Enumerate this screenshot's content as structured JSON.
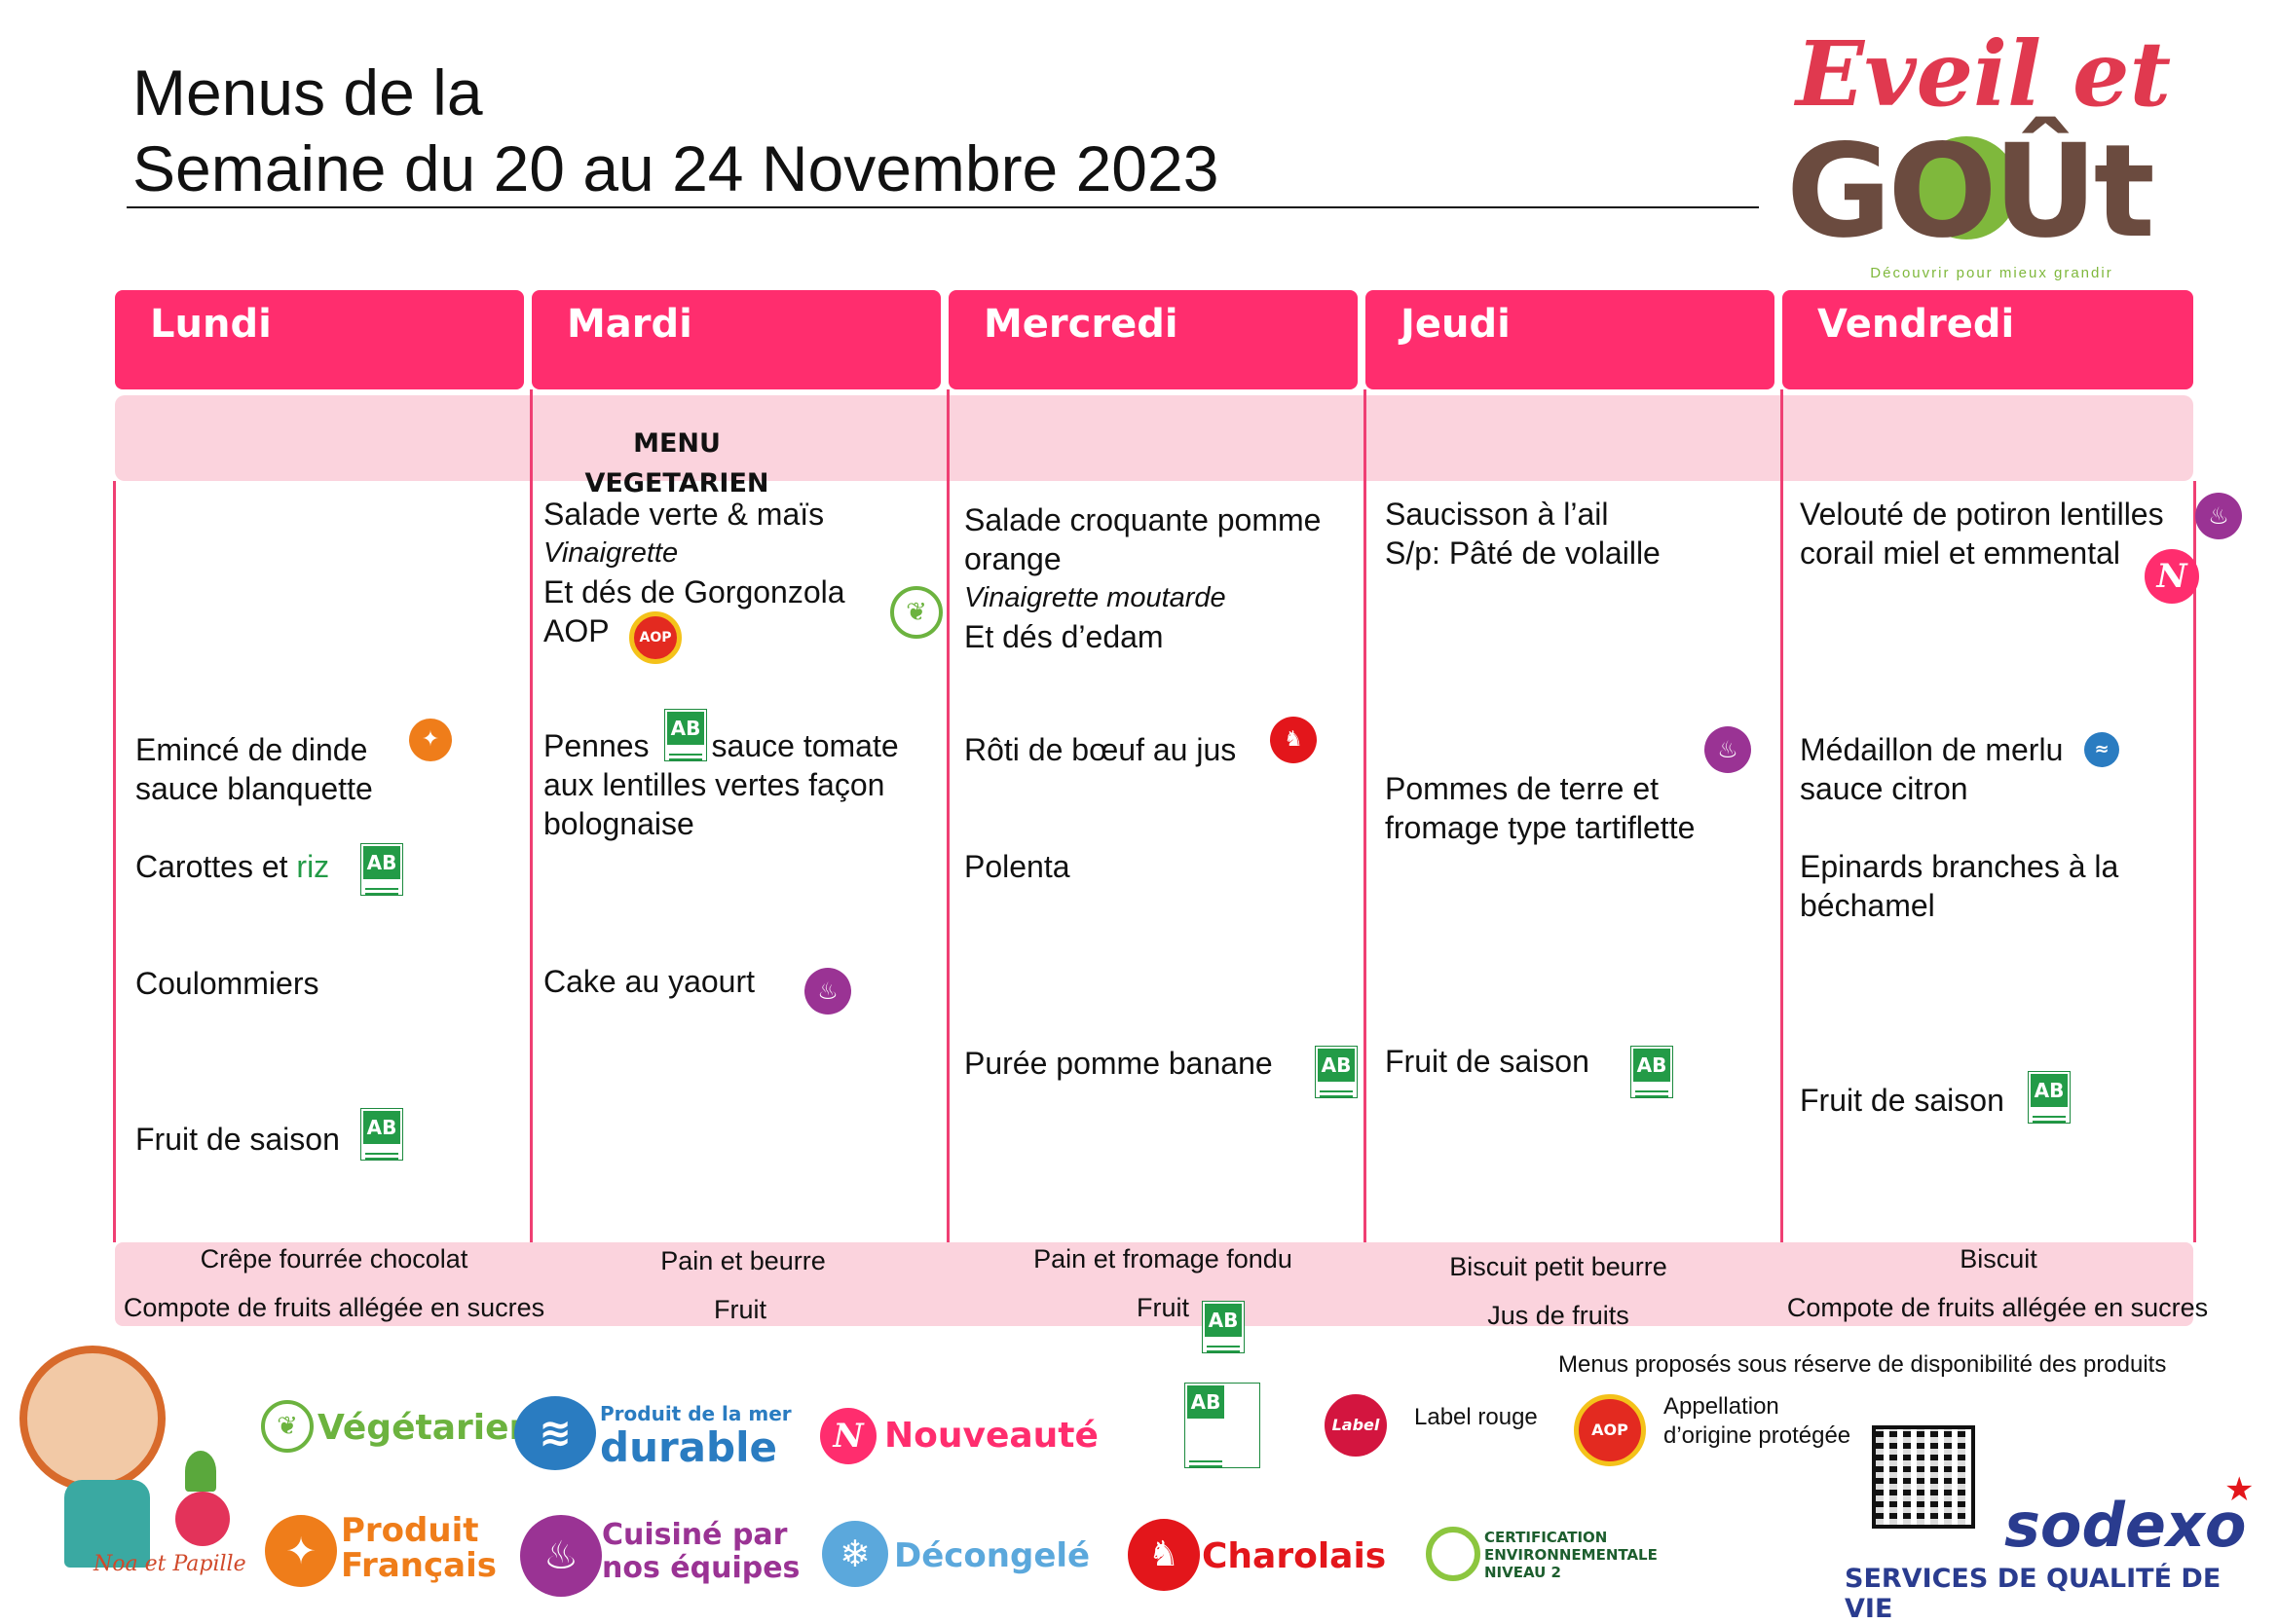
{
  "header": {
    "title_line1": "Menus de la",
    "title_line2": "Semaine du 20 au 24 Novembre 2023"
  },
  "logo": {
    "eveil": "Eveil et",
    "gout": "GOÛt",
    "tagline": "Découvrir pour mieux grandir"
  },
  "days": [
    "Lundi",
    "Mardi",
    "Mercredi",
    "Jeudi",
    "Vendredi"
  ],
  "special_label": "MENU VEGETARIEN",
  "menu": {
    "lundi": {
      "plat_l1": "Emincé de dinde",
      "plat_l2": "sauce blanquette",
      "accomp_a": "Carottes et ",
      "accomp_b": "riz",
      "fromage": "Coulommiers",
      "dessert": "Fruit de saison"
    },
    "mardi": {
      "entree_l1": "Salade verte & maïs",
      "entree_sauce": "Vinaigrette",
      "entree_l3": "Et dés de Gorgonzola",
      "entree_l4": "AOP",
      "plat_l1a": "Pennes",
      "plat_l1b": "sauce tomate",
      "plat_l2": "aux lentilles vertes façon",
      "plat_l3": "bolognaise",
      "dessert": "Cake au yaourt"
    },
    "mercredi": {
      "entree_l1": "Salade croquante pomme",
      "entree_l2": "orange",
      "entree_sauce": "Vinaigrette moutarde",
      "entree_l4": "Et dés d’edam",
      "plat": "Rôti de bœuf au jus",
      "accomp": "Polenta",
      "dessert": "Purée pomme banane"
    },
    "jeudi": {
      "entree_l1": "Saucisson à l’ail",
      "entree_l2": "S/p: Pâté de volaille",
      "plat_l1": "Pommes de terre et",
      "plat_l2": "fromage type tartiflette",
      "dessert": "Fruit de saison"
    },
    "vendredi": {
      "entree_l1": "Velouté de potiron lentilles",
      "entree_l2": "corail miel et emmental",
      "plat_l1": "Médaillon de merlu",
      "plat_l2": "sauce citron",
      "accomp_l1": "Epinards branches à la",
      "accomp_l2": "béchamel",
      "dessert": "Fruit de saison"
    }
  },
  "gouter": {
    "lundi": [
      "Crêpe fourrée chocolat",
      "Compote de fruits allégée en sucres"
    ],
    "mardi": [
      "Pain et beurre",
      "Fruit"
    ],
    "mercredi": [
      "Pain et fromage fondu",
      "Fruit"
    ],
    "jeudi": [
      "Biscuit petit beurre",
      "Jus de fruits"
    ],
    "vendredi": [
      "Biscuit",
      "Compote de fruits allégée en sucres"
    ]
  },
  "legend": {
    "vegetarien": "Végétarien",
    "mer_l1": "Produit de la mer",
    "mer_l2": "durable",
    "nouveaute": "Nouveauté",
    "label_rouge": "Label rouge",
    "aop_l1": "Appellation",
    "aop_l2": "d’origine protégée",
    "produit_l1": "Produit",
    "produit_l2": "Français",
    "cuisine_l1": "Cuisiné par",
    "cuisine_l2": "nos équipes",
    "decongele": "Décongelé",
    "charolais": "Charolais",
    "cert_l1": "CERTIFICATION",
    "cert_l2": "ENVIRONNEMENTALE",
    "cert_l3": "NIVEAU 2",
    "ab_caption": "AGRICULTURE BIOLOGIQUE"
  },
  "note": "Menus proposés sous réserve de disponibilité des produits",
  "mascot": "Noa et Papille",
  "brand": {
    "name": "sodexo",
    "subtitle": "SERVICES DE QUALITÉ DE VIE"
  },
  "colors": {
    "header_pink": "#ff2d6e",
    "band_pink": "#fbd3dd",
    "bio_green": "#239b47",
    "chef_purple": "#9a3394",
    "france_orange": "#ef7d1a",
    "charolais_red": "#e3161b",
    "sodexo_blue": "#2a3c8f"
  },
  "icons": [
    "ab-bio-icon",
    "produit-francais-icon",
    "cuisine-icon",
    "vegetarien-icon",
    "charolais-icon",
    "peche-durable-icon",
    "nouveaute-icon",
    "aop-icon",
    "label-rouge-icon",
    "decongele-icon",
    "certification-icon",
    "qr-code-icon"
  ]
}
